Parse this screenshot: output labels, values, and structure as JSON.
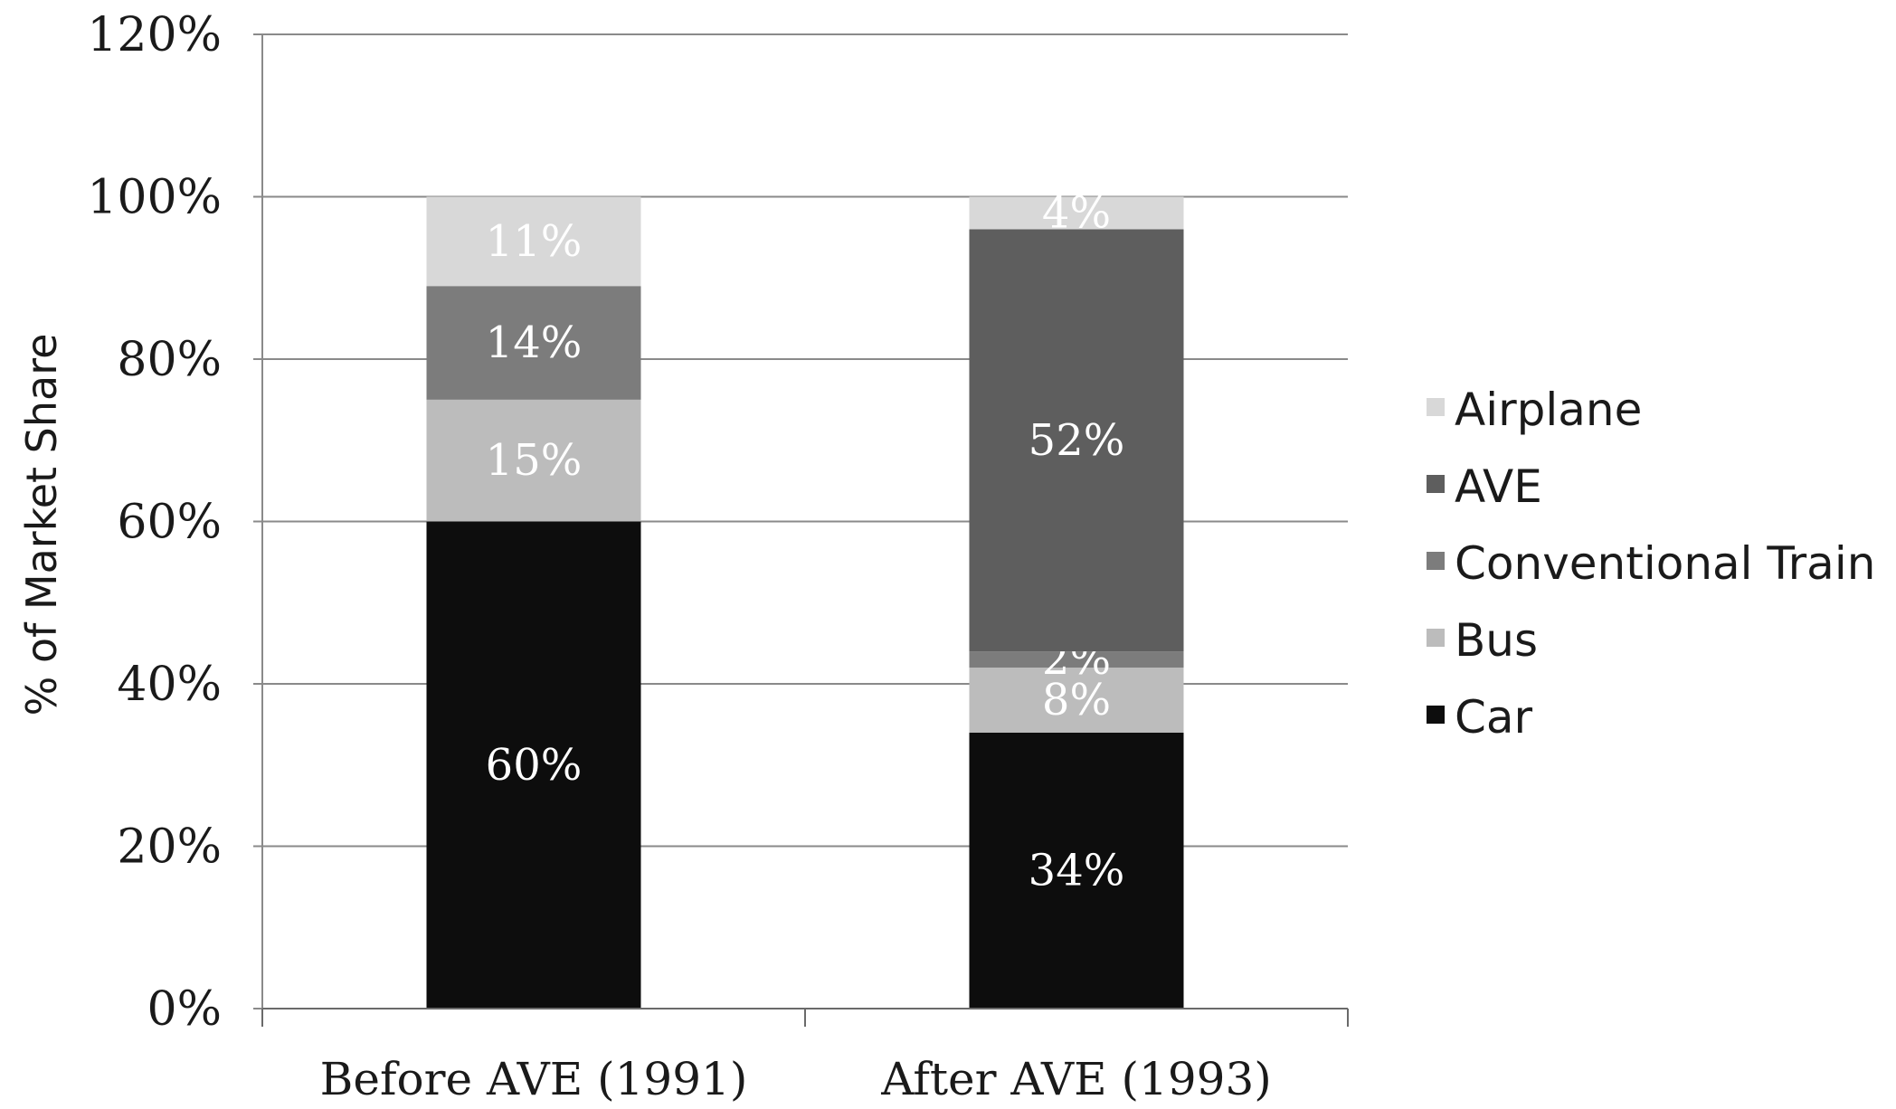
{
  "chart_data": {
    "type": "bar",
    "stacked": true,
    "categories": [
      "Before AVE (1991)",
      "After AVE (1993)"
    ],
    "ylabel": "% of Market Share",
    "ylim": [
      0,
      120
    ],
    "yticks": [
      "0%",
      "20%",
      "40%",
      "60%",
      "80%",
      "100%",
      "120%"
    ],
    "grid": true,
    "legend": "right",
    "series": [
      {
        "name": "Car",
        "color": "#0d0d0d",
        "values": [
          60,
          34
        ],
        "labels": [
          "60%",
          "34%"
        ]
      },
      {
        "name": "Bus",
        "color": "#bcbcbc",
        "values": [
          15,
          8
        ],
        "labels": [
          "15%",
          "8%"
        ]
      },
      {
        "name": "Conventional Train",
        "color": "#7c7c7c",
        "values": [
          14,
          2
        ],
        "labels": [
          "14%",
          "2%"
        ]
      },
      {
        "name": "AVE",
        "color": "#5e5e5e",
        "values": [
          0,
          52
        ],
        "labels": [
          "",
          "52%"
        ]
      },
      {
        "name": "Airplane",
        "color": "#d8d8d8",
        "values": [
          11,
          4
        ],
        "labels": [
          "11%",
          "4%"
        ]
      }
    ],
    "legend_order": [
      "Airplane",
      "AVE",
      "Conventional Train",
      "Bus",
      "Car"
    ]
  }
}
